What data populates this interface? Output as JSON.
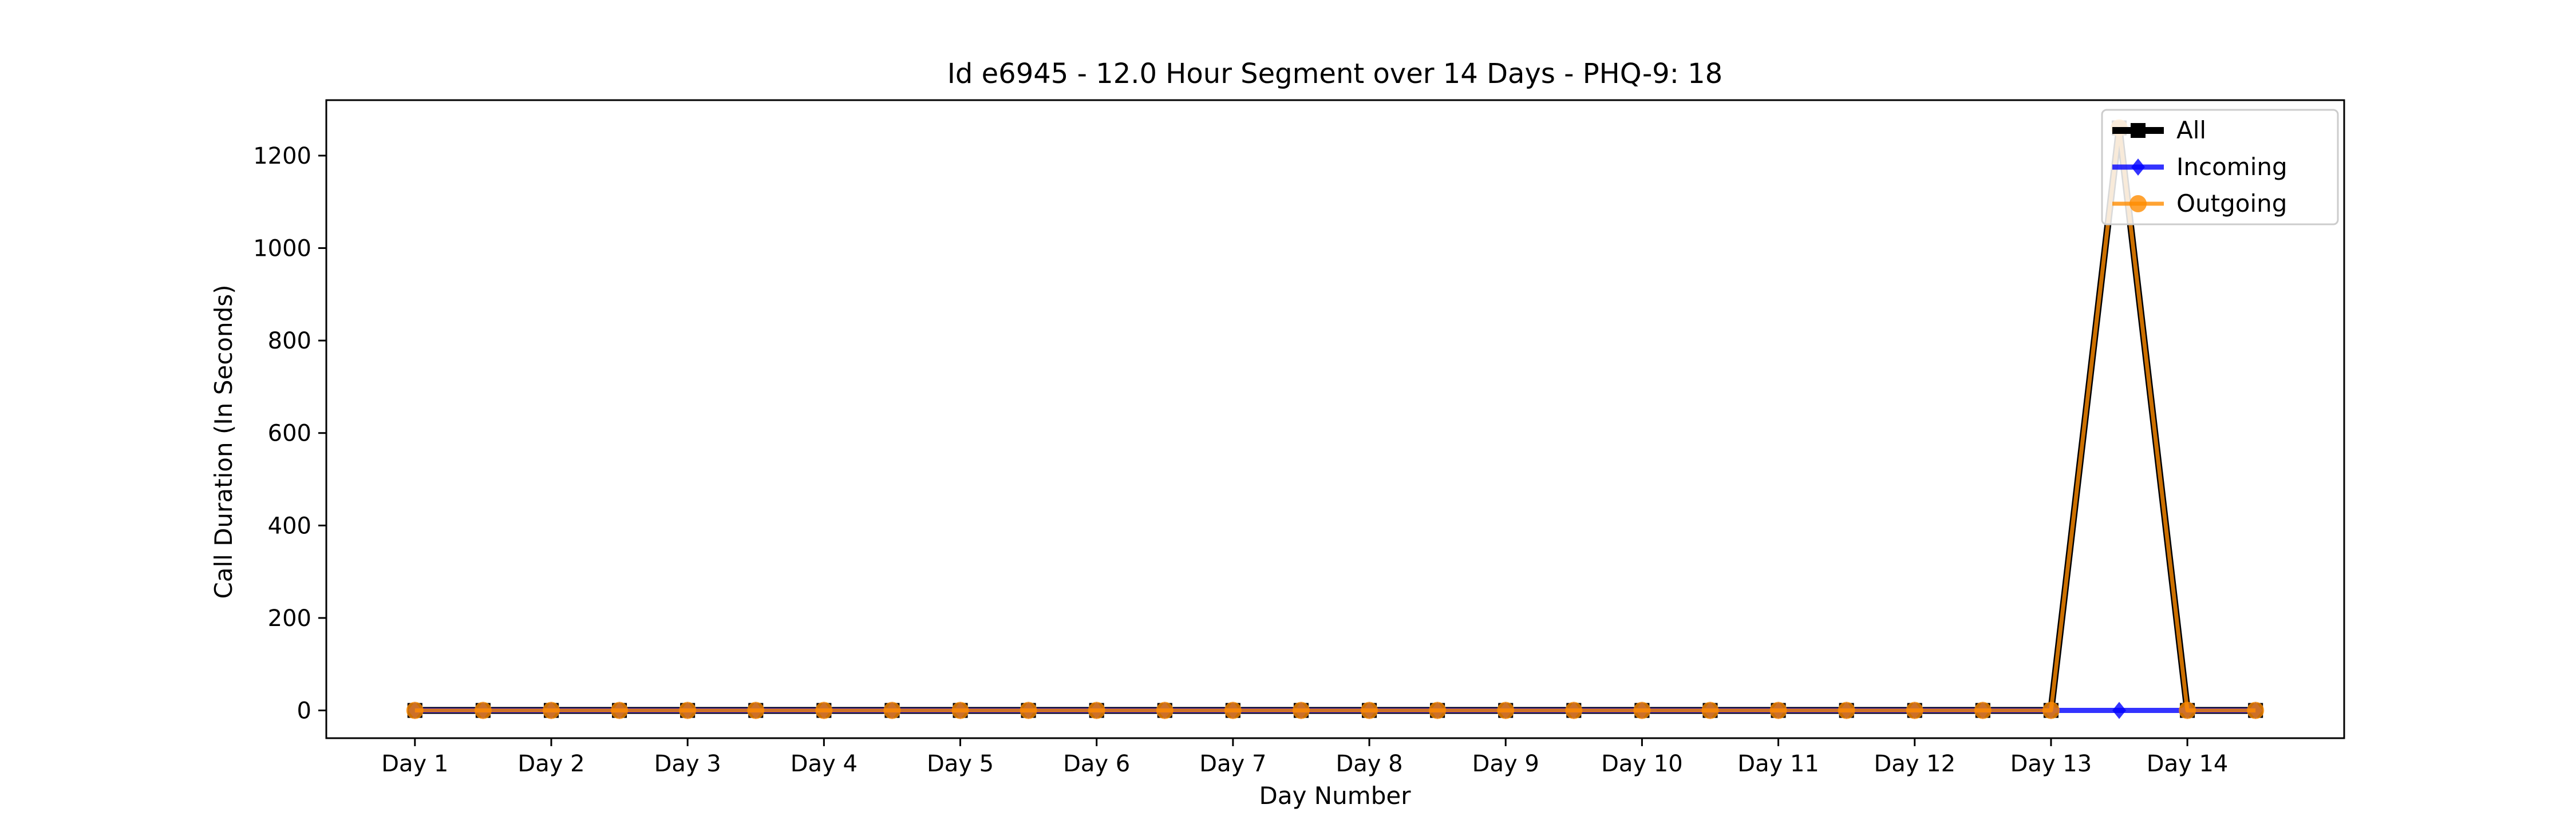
{
  "chart_data": {
    "type": "line",
    "title": "Id e6945 - 12.0 Hour Segment over 14 Days - PHQ-9: 18",
    "xlabel": "Day Number",
    "ylabel": "Call Duration (In Seconds)",
    "ylim": [
      -60,
      1320
    ],
    "yticks": [
      0,
      200,
      400,
      600,
      800,
      1000,
      1200
    ],
    "xlim": [
      -1.3,
      28.3
    ],
    "xtick_labels": [
      "Day 1",
      "Day 2",
      "Day 3",
      "Day 4",
      "Day 5",
      "Day 6",
      "Day 7",
      "Day 8",
      "Day 9",
      "Day 10",
      "Day 11",
      "Day 12",
      "Day 13",
      "Day 14"
    ],
    "xtick_positions": [
      0,
      2,
      4,
      6,
      8,
      10,
      12,
      14,
      16,
      18,
      20,
      22,
      24,
      26
    ],
    "x": [
      0,
      1,
      2,
      3,
      4,
      5,
      6,
      7,
      8,
      9,
      10,
      11,
      12,
      13,
      14,
      15,
      16,
      17,
      18,
      19,
      20,
      21,
      22,
      23,
      24,
      25,
      26,
      27
    ],
    "legend_position": "top-right",
    "grid": false,
    "series": [
      {
        "name": "All",
        "color": "#000000",
        "marker": "square",
        "values": [
          0,
          0,
          0,
          0,
          0,
          0,
          0,
          0,
          0,
          0,
          0,
          0,
          0,
          0,
          0,
          0,
          0,
          0,
          0,
          0,
          0,
          0,
          0,
          0,
          0,
          1260,
          0,
          0
        ]
      },
      {
        "name": "Incoming",
        "color": "#0000ff",
        "marker": "diamond",
        "values": [
          0,
          0,
          0,
          0,
          0,
          0,
          0,
          0,
          0,
          0,
          0,
          0,
          0,
          0,
          0,
          0,
          0,
          0,
          0,
          0,
          0,
          0,
          0,
          0,
          0,
          0,
          0,
          0
        ]
      },
      {
        "name": "Outgoing",
        "color": "#ff8c00",
        "marker": "circle",
        "values": [
          0,
          0,
          0,
          0,
          0,
          0,
          0,
          0,
          0,
          0,
          0,
          0,
          0,
          0,
          0,
          0,
          0,
          0,
          0,
          0,
          0,
          0,
          0,
          0,
          0,
          1260,
          0,
          0
        ]
      }
    ]
  }
}
